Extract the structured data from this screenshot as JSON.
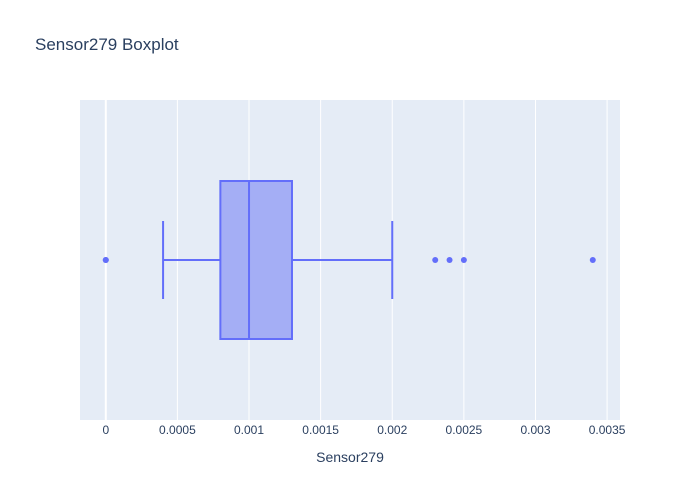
{
  "chart_data": {
    "type": "box",
    "title": "Sensor279 Boxplot",
    "xlabel": "Sensor279",
    "ylabel": "",
    "orientation": "horizontal",
    "xlim": [
      -0.00018,
      0.00359
    ],
    "ticks": [
      {
        "value": 0,
        "label": "0"
      },
      {
        "value": 0.0005,
        "label": "0.0005"
      },
      {
        "value": 0.001,
        "label": "0.001"
      },
      {
        "value": 0.0015,
        "label": "0.0015"
      },
      {
        "value": 0.002,
        "label": "0.002"
      },
      {
        "value": 0.0025,
        "label": "0.0025"
      },
      {
        "value": 0.003,
        "label": "0.003"
      },
      {
        "value": 0.0035,
        "label": "0.0035"
      }
    ],
    "grid": true,
    "legend": false,
    "box": {
      "lower_whisker": 0.0004,
      "q1": 0.0008,
      "median": 0.001,
      "q3": 0.0013,
      "upper_whisker": 0.002
    },
    "outliers": [
      0,
      0,
      0.0023,
      0.0024,
      0.0025,
      0.0034
    ],
    "colors": {
      "plot_bg": "#E5ECF6",
      "grid": "#ffffff",
      "box_fill": "#A4AEF5",
      "box_line": "#636EFA",
      "title": "#2A3F5F",
      "tick_text": "#2A3F5F"
    }
  }
}
